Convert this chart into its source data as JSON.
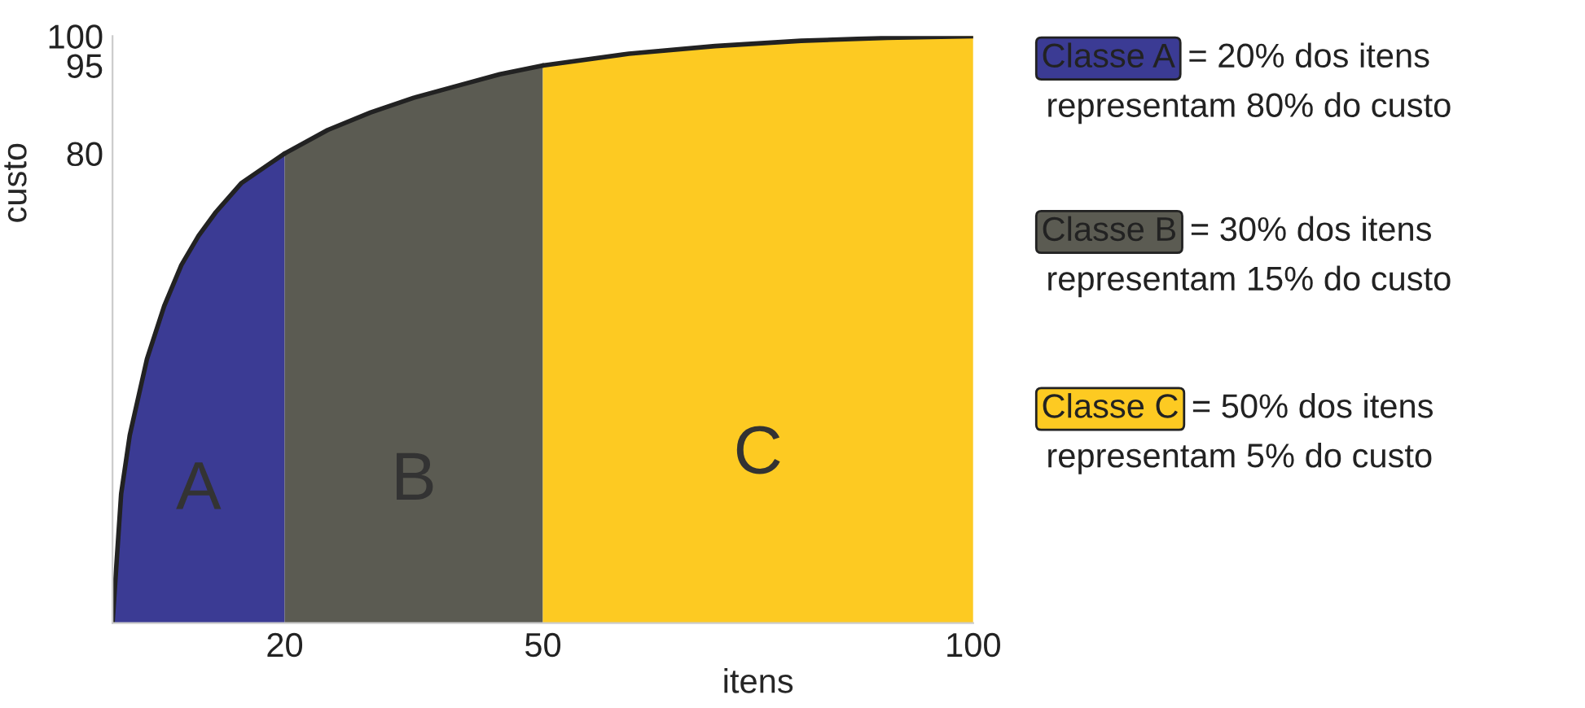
{
  "chart_data": {
    "type": "area",
    "xlabel": "itens",
    "ylabel": "custo",
    "xlim": [
      0,
      100
    ],
    "ylim": [
      0,
      100
    ],
    "xticks": [
      20,
      50,
      100
    ],
    "yticks": [
      80,
      95,
      100
    ],
    "grid": false,
    "legend": false,
    "series": [
      {
        "name": "A",
        "color": "#3b3b94",
        "x": [
          0,
          1,
          2,
          4,
          6,
          8,
          10,
          12,
          15,
          18,
          20
        ],
        "values": [
          0,
          22,
          32,
          45,
          54,
          61,
          66,
          70,
          75,
          78,
          80
        ]
      },
      {
        "name": "B",
        "color": "#5b5b52",
        "x": [
          20,
          25,
          30,
          35,
          40,
          45,
          50
        ],
        "values": [
          80,
          84,
          87,
          89.5,
          91.5,
          93.5,
          95
        ]
      },
      {
        "name": "C",
        "color": "#fdca22",
        "x": [
          50,
          60,
          70,
          80,
          90,
          100
        ],
        "values": [
          95,
          97,
          98.3,
          99.2,
          99.7,
          100
        ]
      }
    ],
    "annotations": [
      "Classe A= 20% dos itens\nrepresentam 80% do custo",
      "Classe B= 30% dos itens\nrepresentam 15% do custo",
      "Classe C= 50% dos itens\nrepresentam 5% do custo"
    ]
  }
}
